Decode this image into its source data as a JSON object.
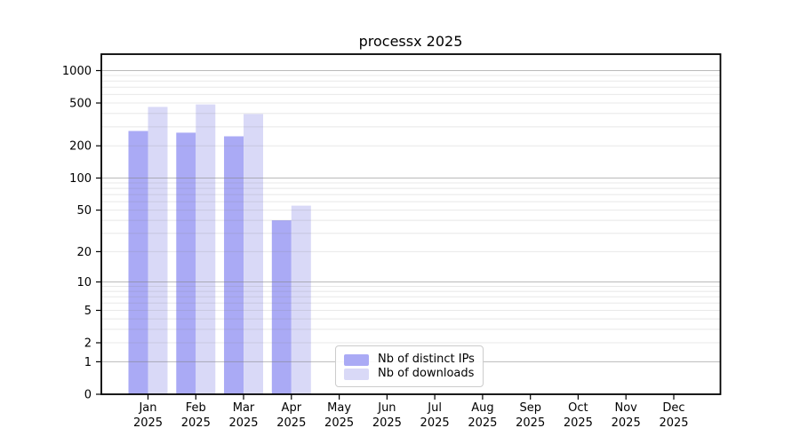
{
  "chart_data": {
    "type": "bar",
    "title": "processx 2025",
    "xlabel": "",
    "ylabel": "",
    "yscale": "log1p",
    "ylim": [
      0,
      1420
    ],
    "y_ticks": [
      0,
      1,
      2,
      5,
      10,
      20,
      50,
      100,
      200,
      500,
      1000
    ],
    "grid": "horizontal major and minor gridlines, drawn over bars",
    "legend_position": "inside bottom-center-left",
    "months": [
      "Jan",
      "Feb",
      "Mar",
      "Apr",
      "May",
      "Jun",
      "Jul",
      "Aug",
      "Sep",
      "Oct",
      "Nov",
      "Dec"
    ],
    "year_label": "2025",
    "series": [
      {
        "name": "Nb of distinct IPs",
        "color": "#aaaaf5",
        "values": [
          275,
          265,
          245,
          40,
          null,
          null,
          null,
          null,
          null,
          null,
          null,
          null
        ]
      },
      {
        "name": "Nb of downloads",
        "color": "#d9d9f7",
        "values": [
          460,
          485,
          395,
          55,
          null,
          null,
          null,
          null,
          null,
          null,
          null,
          null
        ]
      }
    ],
    "colors": {
      "axis": "#000000",
      "grid_major": "#b3b3b3",
      "grid_minor": "#e9e9e9",
      "background": "#ffffff"
    }
  }
}
